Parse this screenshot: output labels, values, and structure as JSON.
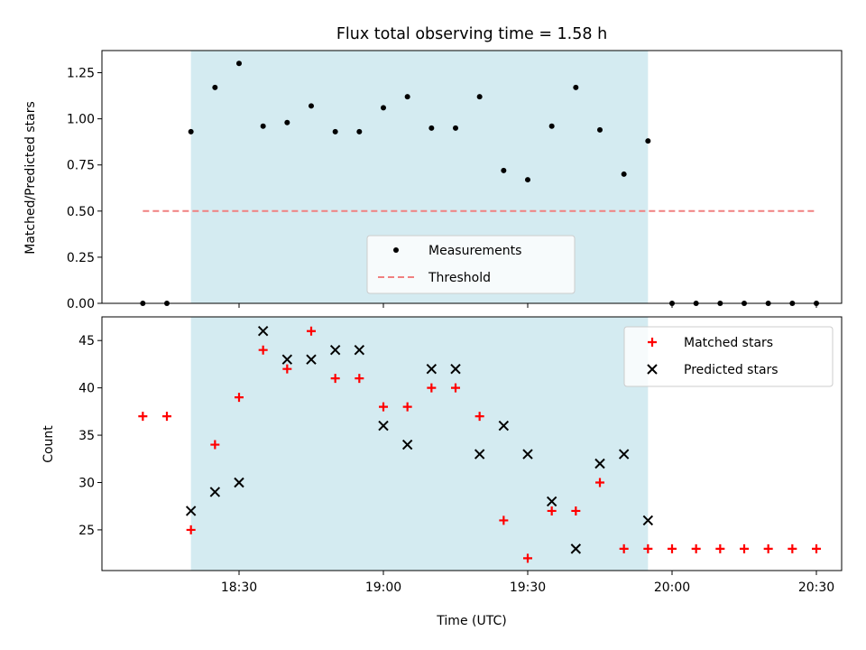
{
  "title": "Flux total observing time = 1.58 h",
  "xlabel": "Time (UTC)",
  "xticks": [
    "18:30",
    "19:00",
    "19:30",
    "20:00",
    "20:30"
  ],
  "colors": {
    "observing_span": "#d4ebf1",
    "measurements": "#000000",
    "threshold": "#f08080",
    "matched": "#ff0000",
    "predicted": "#000000"
  },
  "chart_data": [
    {
      "type": "scatter",
      "ylabel": "Matched/Predicted stars",
      "ylim": [
        0.0,
        1.37
      ],
      "yticks": [
        "0.00",
        "0.25",
        "0.50",
        "0.75",
        "1.00",
        "1.25"
      ],
      "shaded_span": {
        "start": "18:20",
        "end": "19:55"
      },
      "legend": {
        "position": "lower center",
        "entries": [
          "Measurements",
          "Threshold"
        ]
      },
      "threshold": {
        "name": "Threshold",
        "y": 0.5,
        "x_start": "18:10",
        "x_end": "20:30"
      },
      "series": [
        {
          "name": "Measurements",
          "x": [
            "18:10",
            "18:15",
            "18:20",
            "18:25",
            "18:30",
            "18:35",
            "18:40",
            "18:45",
            "18:50",
            "18:55",
            "19:00",
            "19:05",
            "19:10",
            "19:15",
            "19:20",
            "19:25",
            "19:30",
            "19:35",
            "19:40",
            "19:45",
            "19:50",
            "19:55",
            "20:00",
            "20:05",
            "20:10",
            "20:15",
            "20:20",
            "20:25",
            "20:30"
          ],
          "y": [
            0.0,
            0.0,
            0.93,
            1.17,
            1.3,
            0.96,
            0.98,
            1.07,
            0.93,
            0.93,
            1.06,
            1.12,
            0.95,
            0.95,
            1.12,
            0.72,
            0.67,
            0.96,
            1.17,
            0.94,
            0.7,
            0.88,
            0.0,
            0.0,
            0.0,
            0.0,
            0.0,
            0.0,
            0.0
          ]
        }
      ]
    },
    {
      "type": "scatter",
      "ylabel": "Count",
      "ylim": [
        20.7,
        47.5
      ],
      "yticks": [
        "25",
        "30",
        "35",
        "40",
        "45"
      ],
      "shaded_span": {
        "start": "18:20",
        "end": "19:55"
      },
      "legend": {
        "position": "upper right",
        "entries": [
          "Matched stars",
          "Predicted stars"
        ]
      },
      "series": [
        {
          "name": "Matched stars",
          "x": [
            "18:10",
            "18:15",
            "18:20",
            "18:25",
            "18:30",
            "18:35",
            "18:40",
            "18:45",
            "18:50",
            "18:55",
            "19:00",
            "19:05",
            "19:10",
            "19:15",
            "19:20",
            "19:25",
            "19:30",
            "19:35",
            "19:40",
            "19:45",
            "19:50",
            "19:55",
            "20:00",
            "20:05",
            "20:10",
            "20:15",
            "20:20",
            "20:25",
            "20:30"
          ],
          "y": [
            37,
            37,
            25,
            34,
            39,
            44,
            42,
            46,
            41,
            41,
            38,
            38,
            40,
            40,
            37,
            26,
            22,
            27,
            27,
            30,
            23,
            23,
            23,
            23,
            23,
            23,
            23,
            23,
            23
          ]
        },
        {
          "name": "Predicted stars",
          "x": [
            "18:20",
            "18:25",
            "18:30",
            "18:35",
            "18:40",
            "18:45",
            "18:50",
            "18:55",
            "19:00",
            "19:05",
            "19:10",
            "19:15",
            "19:20",
            "19:25",
            "19:30",
            "19:35",
            "19:40",
            "19:45",
            "19:50",
            "19:55"
          ],
          "y": [
            27,
            29,
            30,
            46,
            43,
            43,
            44,
            44,
            36,
            34,
            42,
            42,
            33,
            36,
            33,
            28,
            23,
            32,
            33,
            26
          ]
        }
      ]
    }
  ]
}
